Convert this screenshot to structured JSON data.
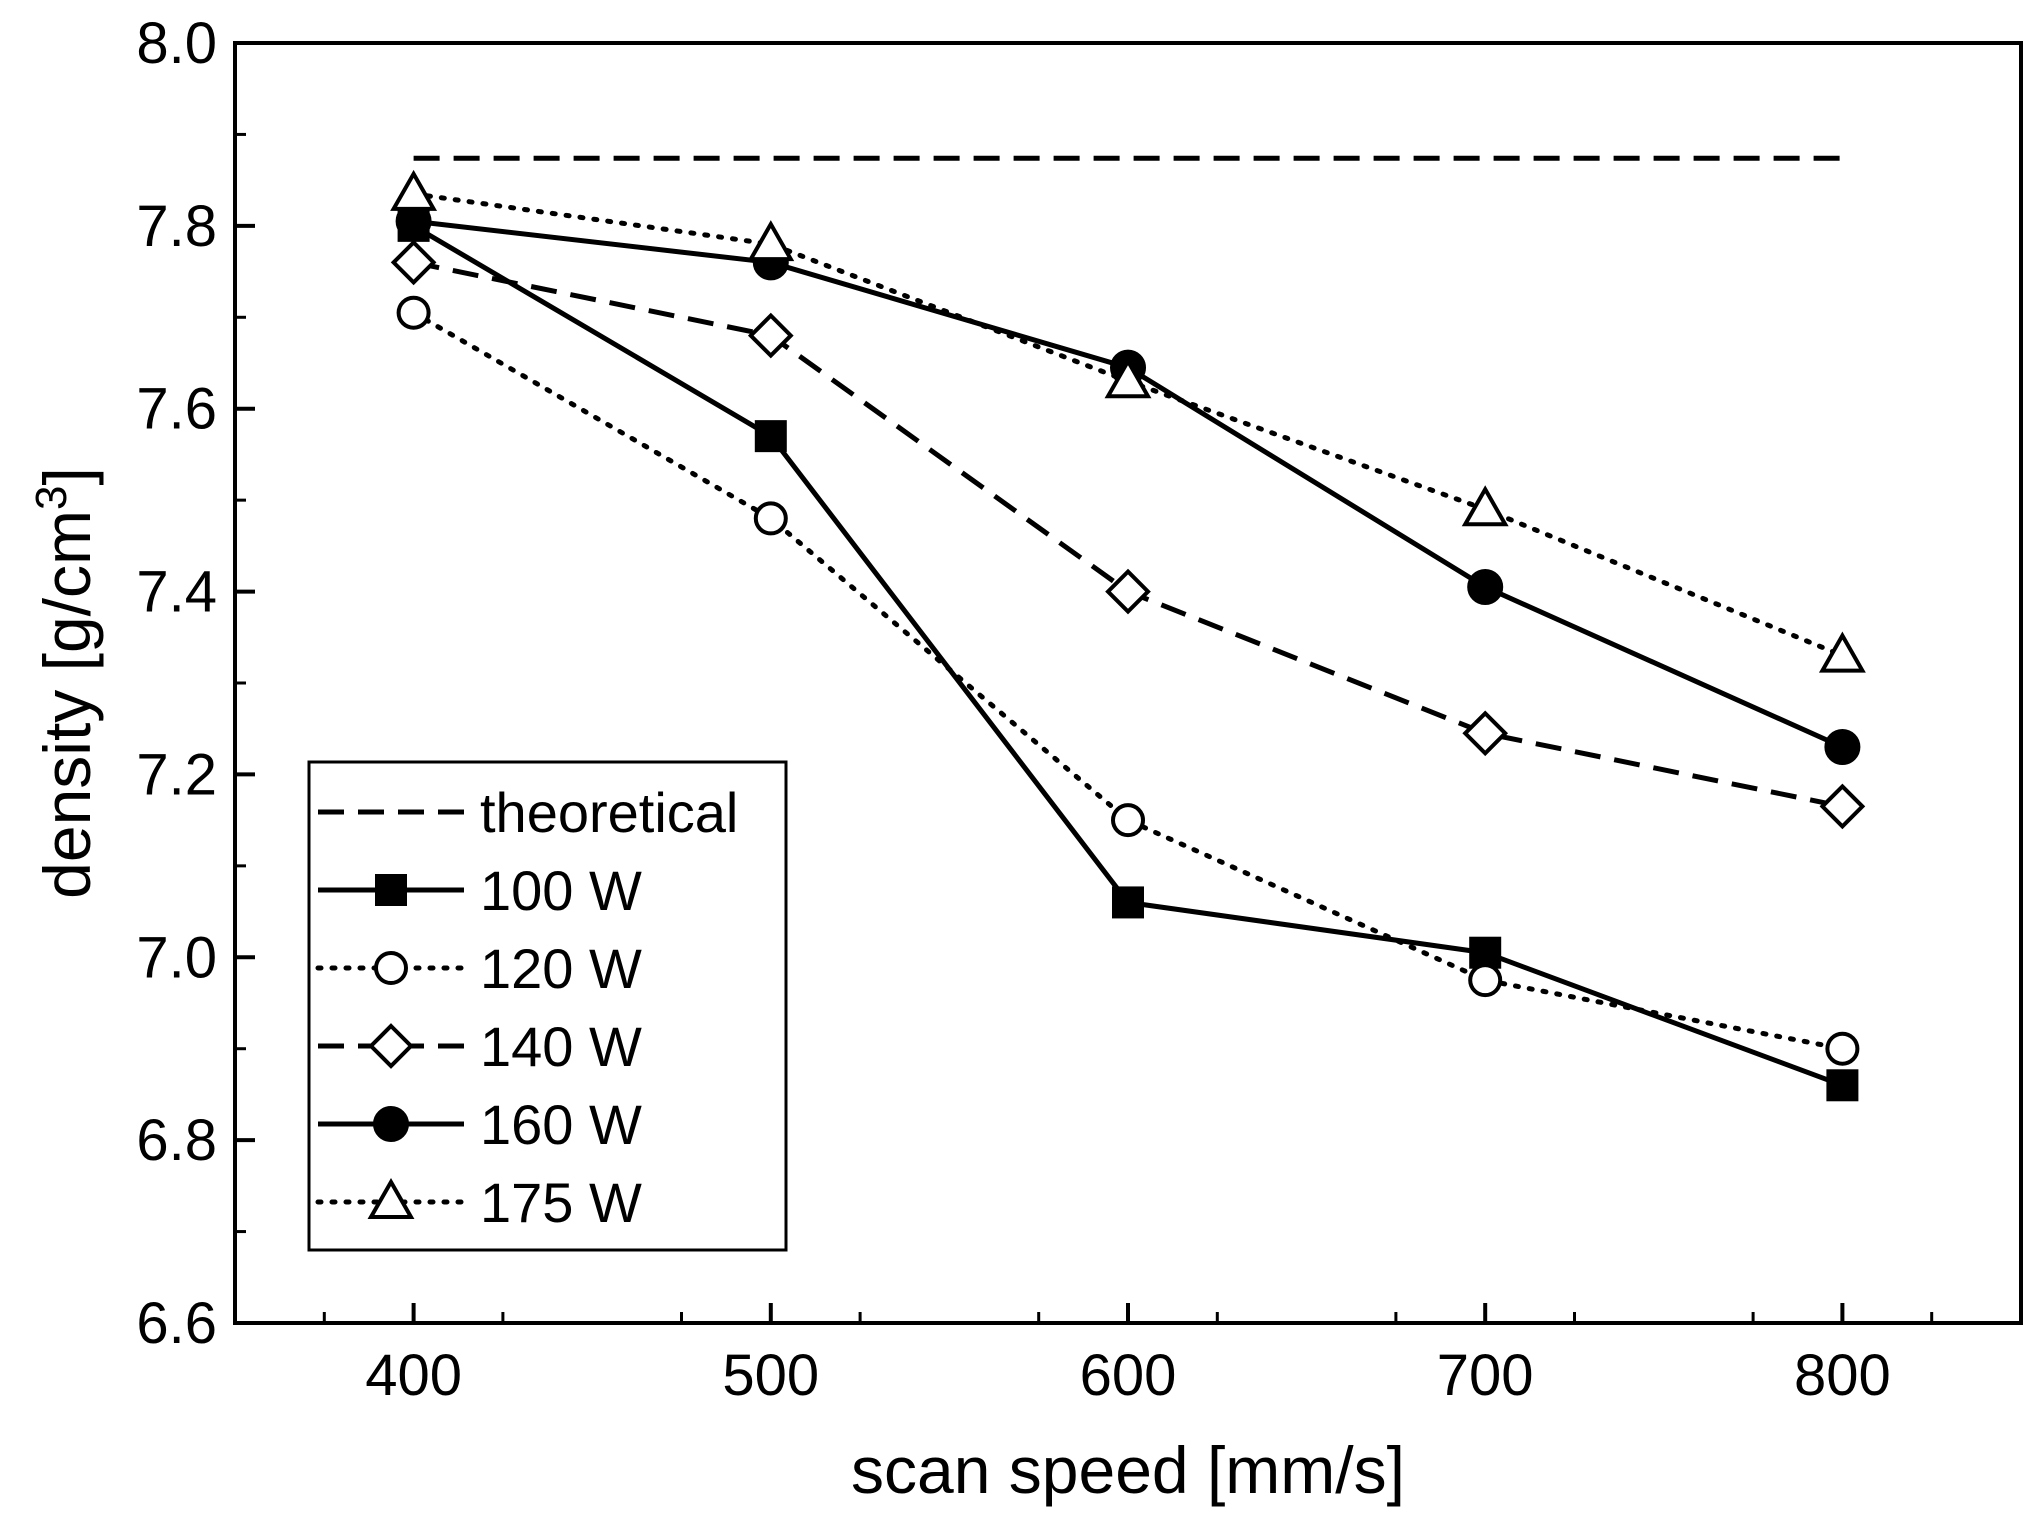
{
  "chart_data": {
    "type": "line",
    "title": "",
    "xlabel": "scan speed [mm/s]",
    "ylabel_base": "density [g/cm",
    "ylabel_sup": "3",
    "ylabel_close": "]",
    "xlim": [
      350,
      850
    ],
    "ylim": [
      6.6,
      8.0
    ],
    "xticks": [
      400,
      500,
      600,
      700,
      800
    ],
    "yticks": [
      6.6,
      6.8,
      7.0,
      7.2,
      7.4,
      7.6,
      7.8,
      8.0
    ],
    "ytick_labels": [
      "6.6",
      "6.8",
      "7.0",
      "7.2",
      "7.4",
      "7.6",
      "7.8",
      "8.0"
    ],
    "xtick_labels": [
      "400",
      "500",
      "600",
      "700",
      "800"
    ],
    "grid": false,
    "legend_position": "bottom-left",
    "x": [
      400,
      500,
      600,
      700,
      800
    ],
    "series": [
      {
        "name": "theoretical",
        "linestyle": "dashed",
        "marker": "none",
        "values": [
          7.874,
          7.874,
          7.874,
          7.874,
          7.874
        ]
      },
      {
        "name": "100 W",
        "linestyle": "solid",
        "marker": "square-filled",
        "values": [
          7.8,
          7.57,
          7.06,
          7.005,
          6.86
        ]
      },
      {
        "name": "120 W",
        "linestyle": "dotted",
        "marker": "circle-open",
        "values": [
          7.705,
          7.48,
          7.15,
          6.975,
          6.9
        ]
      },
      {
        "name": "140 W",
        "linestyle": "dashed",
        "marker": "diamond-open",
        "values": [
          7.76,
          7.68,
          7.4,
          7.245,
          7.165
        ]
      },
      {
        "name": "160 W",
        "linestyle": "solid",
        "marker": "circle-filled",
        "values": [
          7.805,
          7.76,
          7.645,
          7.405,
          7.23
        ]
      },
      {
        "name": "175 W",
        "linestyle": "dotted",
        "marker": "triangle-open",
        "values": [
          7.835,
          7.78,
          7.63,
          7.49,
          7.33
        ]
      }
    ],
    "colors": {
      "line": "#000000",
      "background": "#ffffff"
    }
  }
}
